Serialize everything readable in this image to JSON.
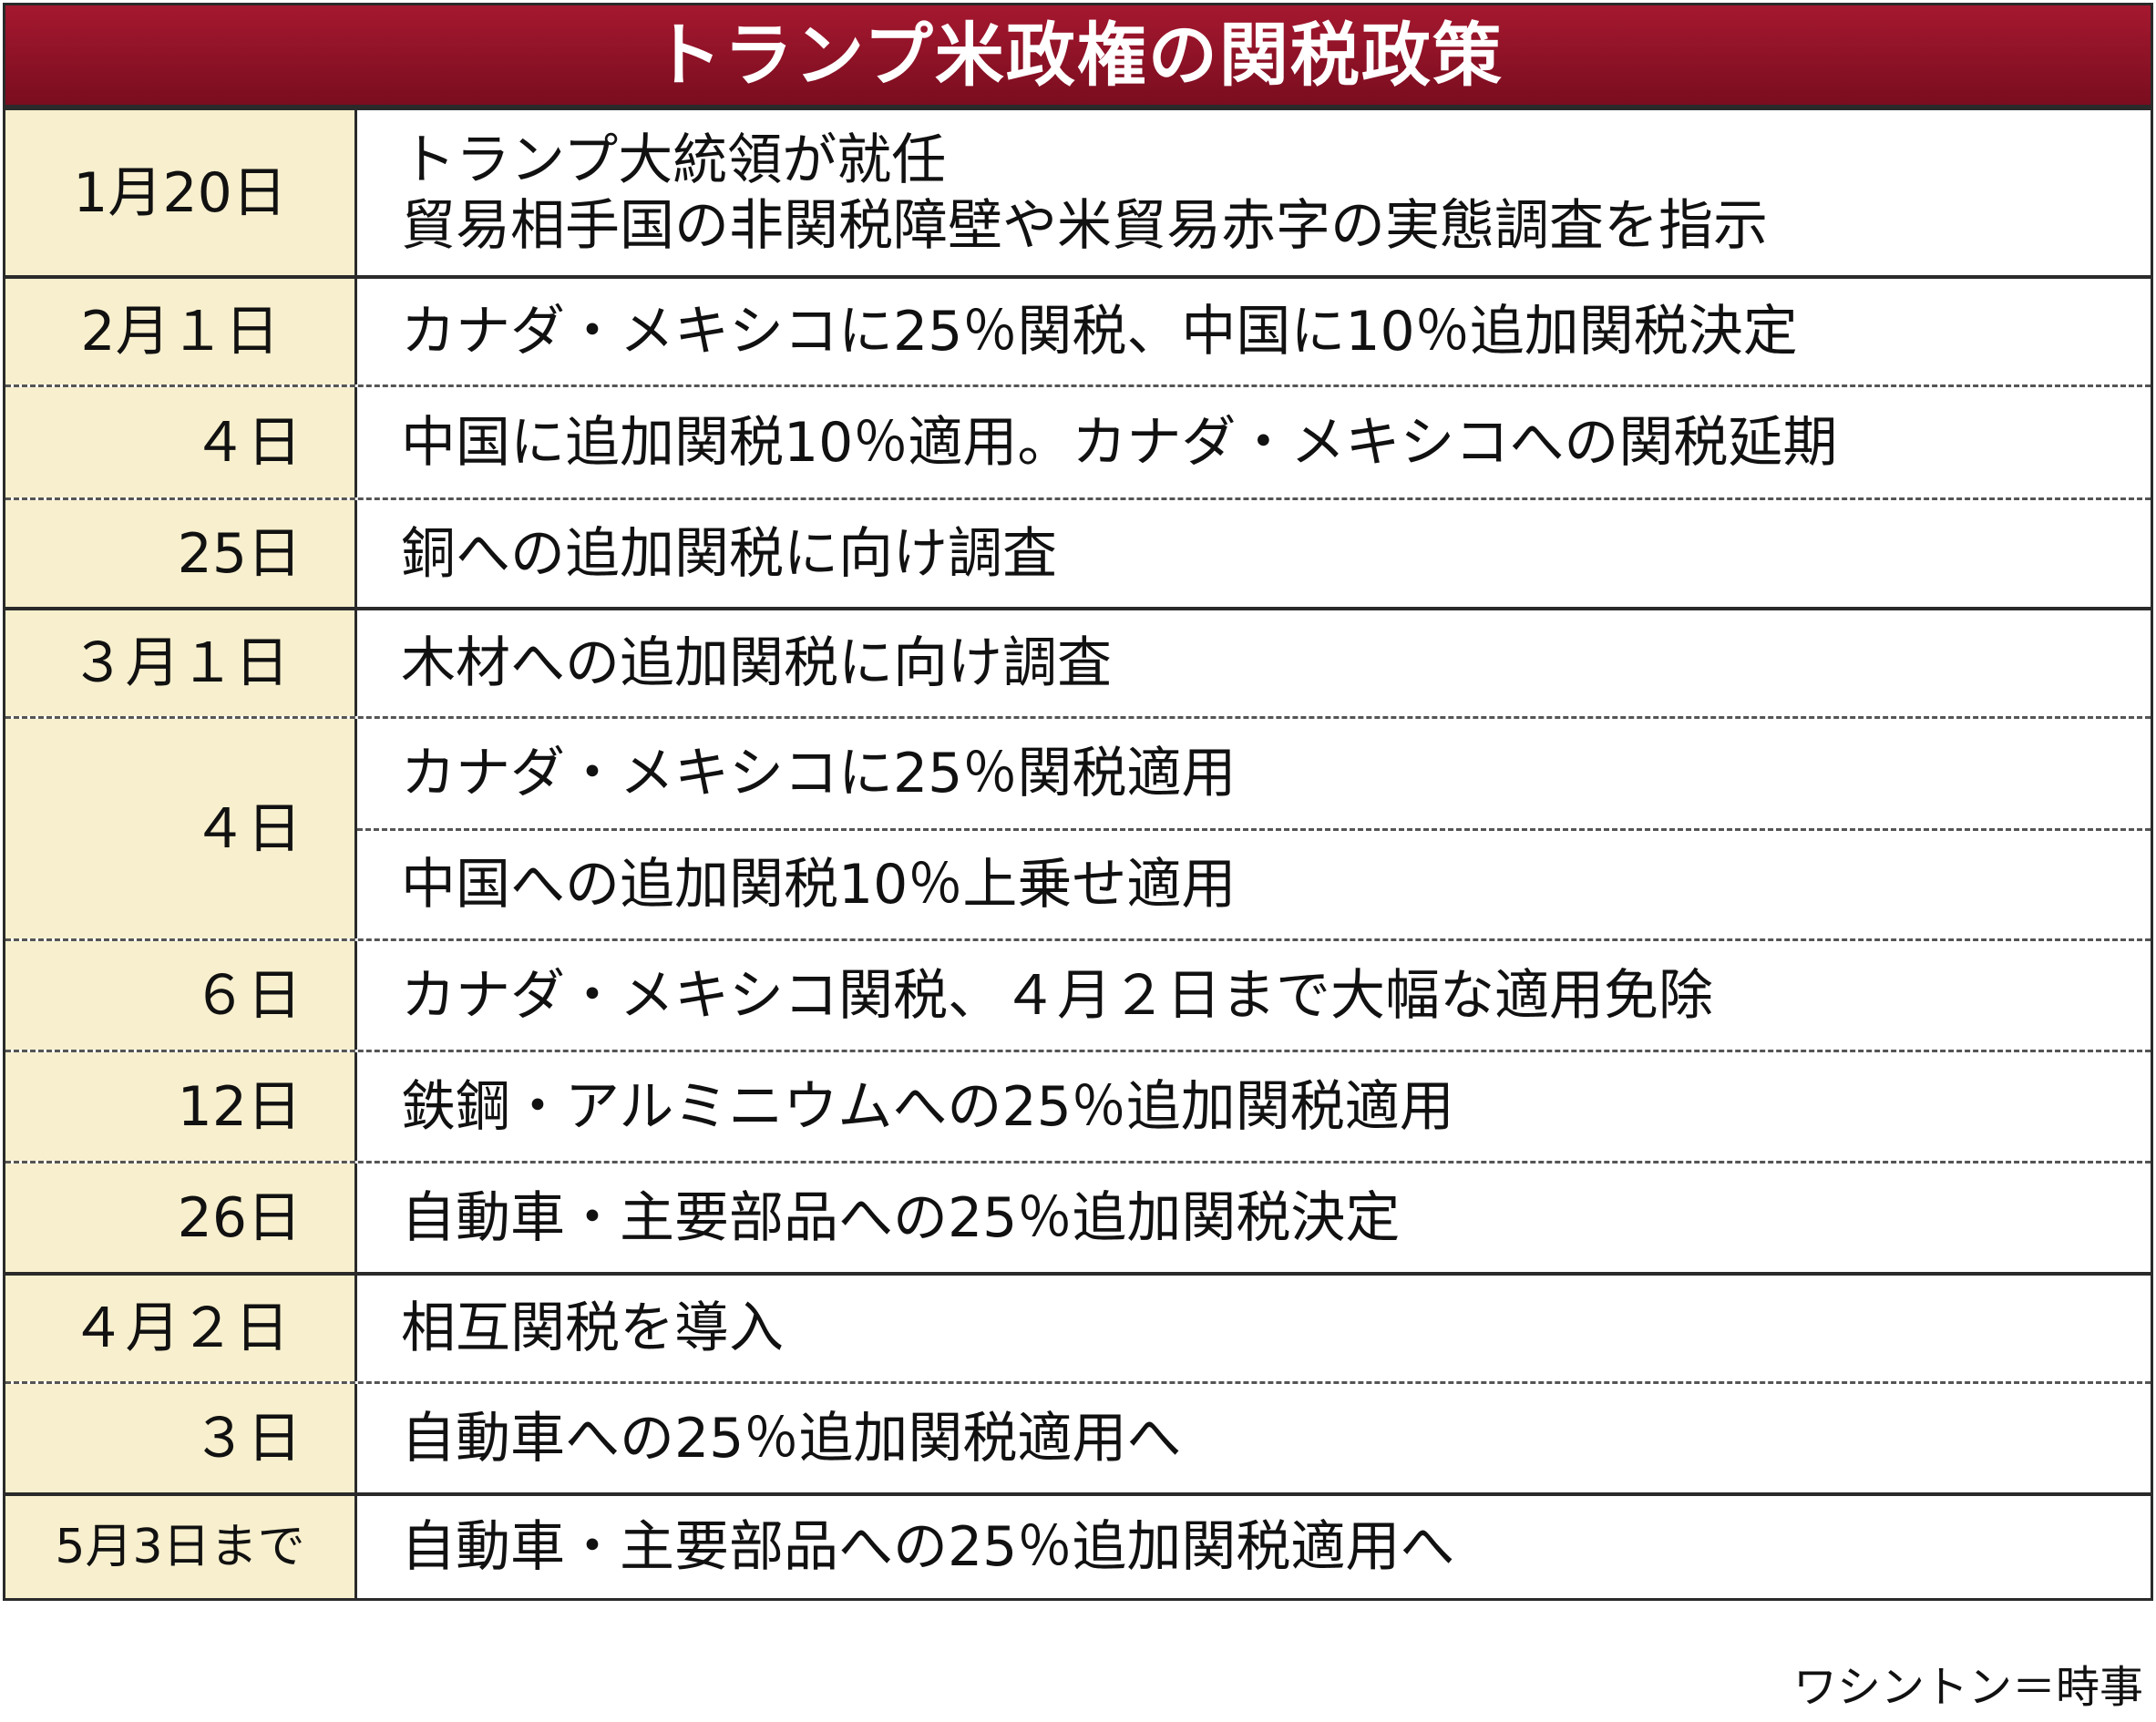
{
  "title": "トランプ米政権の関税政策",
  "rows": [
    {
      "date": "1月20日",
      "events": [
        "トランプ大統領が就任",
        "貿易相手国の非関税障壁や米貿易赤字の実態調査を指示"
      ]
    },
    {
      "date": "2月１日",
      "events": [
        "カナダ・メキシコに25％関税、中国に10％追加関税決定"
      ]
    },
    {
      "date": "４日",
      "events": [
        "中国に追加関税10％適用。カナダ・メキシコへの関税延期"
      ]
    },
    {
      "date": "25日",
      "events": [
        "銅への追加関税に向け調査"
      ]
    },
    {
      "date": "３月１日",
      "events": [
        "木材への追加関税に向け調査"
      ]
    },
    {
      "date": "４日",
      "events": [
        "カナダ・メキシコに25％関税適用",
        "中国への追加関税10％上乗せ適用"
      ]
    },
    {
      "date": "６日",
      "events": [
        "カナダ・メキシコ関税、４月２日まで大幅な適用免除"
      ]
    },
    {
      "date": "12日",
      "events": [
        "鉄鋼・アルミニウムへの25％追加関税適用"
      ]
    },
    {
      "date": "26日",
      "events": [
        "自動車・主要部品への25％追加関税決定"
      ]
    },
    {
      "date": "４月２日",
      "events": [
        "相互関税を導入"
      ]
    },
    {
      "date": "３日",
      "events": [
        "自動車への25％追加関税適用へ"
      ]
    },
    {
      "date": "5月3日まで",
      "events": [
        "自動車・主要部品への25％追加関税適用へ"
      ]
    }
  ],
  "credit": "ワシントン＝時事",
  "colors": {
    "title_background": "#8f1228",
    "date_background": "#f7efcd",
    "border": "#2a2a2a"
  }
}
